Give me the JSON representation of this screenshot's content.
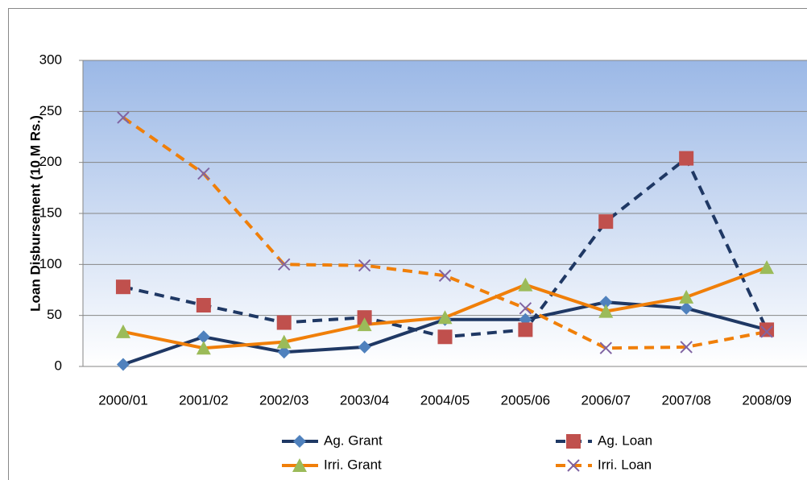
{
  "chart_data": {
    "type": "line",
    "y_label": "Loan Disbursement (10 M Rs.)",
    "categories": [
      "2000/01",
      "2001/02",
      "2002/03",
      "2003/04",
      "2004/05",
      "2005/06",
      "2006/07",
      "2007/08",
      "2008/09"
    ],
    "series": [
      {
        "name": "Ag. Grant",
        "color": "#1f3864",
        "marker_color": "#4f81bd",
        "marker": "diamond",
        "dashed": false,
        "values": [
          2,
          29,
          14,
          19,
          46,
          46,
          63,
          57,
          36
        ]
      },
      {
        "name": "Ag. Loan",
        "color": "#1f3864",
        "marker_color": "#c0504d",
        "marker": "square",
        "dashed": true,
        "values": [
          78,
          60,
          43,
          48,
          29,
          36,
          142,
          204,
          36
        ]
      },
      {
        "name": "Irri. Grant",
        "color": "#f07f09",
        "marker_color": "#9bbb59",
        "marker": "triangle",
        "dashed": false,
        "values": [
          34,
          18,
          24,
          41,
          48,
          80,
          54,
          68,
          97
        ]
      },
      {
        "name": "Irri. Loan",
        "color": "#f07f09",
        "marker_color": "#8064a2",
        "marker": "x",
        "dashed": true,
        "values": [
          244,
          189,
          100,
          99,
          89,
          57,
          18,
          19,
          34
        ]
      }
    ],
    "ylim": [
      0,
      300
    ],
    "yticks": [
      0,
      50,
      100,
      150,
      200,
      250,
      300
    ],
    "grid": true,
    "legend": "bottom"
  }
}
